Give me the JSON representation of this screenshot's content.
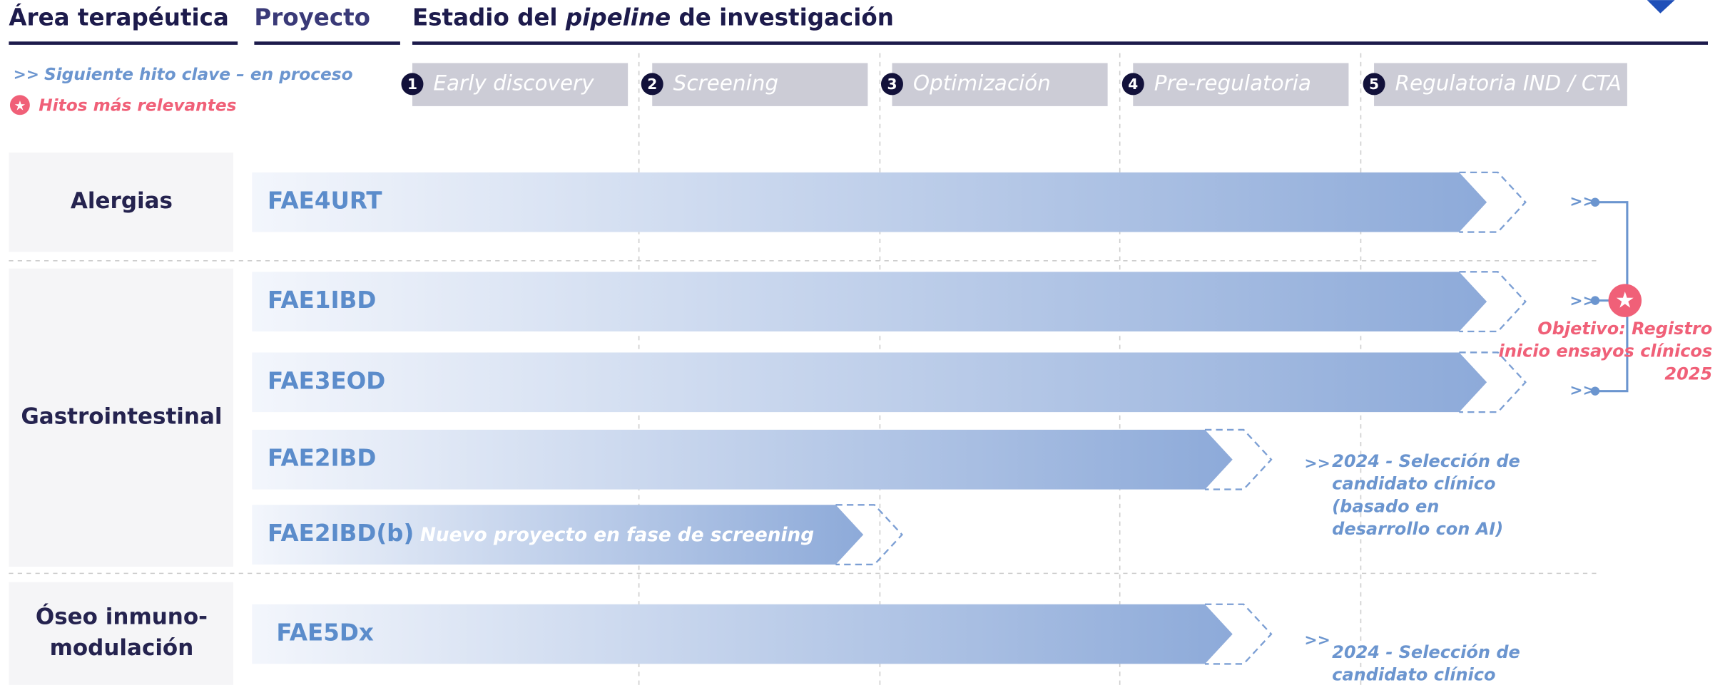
{
  "headers": {
    "area": "Área terapéutica",
    "project": "Proyecto",
    "stage_title": {
      "before": "Estadio del",
      "emphasis": "pipeline",
      "after": "de investigación"
    }
  },
  "legend": {
    "next_milestone": "Siguiente hito clave – en proceso",
    "key_milestones": "Hitos más relevantes"
  },
  "stages": [
    {
      "number": "1",
      "label": "Early discovery"
    },
    {
      "number": "2",
      "label": "Screening"
    },
    {
      "number": "3",
      "label": "Optimización"
    },
    {
      "number": "4",
      "label": "Pre-regulatoria"
    },
    {
      "number": "5",
      "label": "Regulatoria IND / CTA"
    }
  ],
  "areas": [
    {
      "lines": [
        "Alergias"
      ]
    },
    {
      "lines": [
        "Gastrointestinal"
      ]
    },
    {
      "lines": [
        "Óseo inmuno-",
        "modulación"
      ]
    }
  ],
  "projects": [
    {
      "name": "FAE4URT"
    },
    {
      "name": "FAE1IBD"
    },
    {
      "name": "FAE3EOD"
    },
    {
      "name": "FAE2IBD"
    },
    {
      "name": "FAE2IBD(b)",
      "note": "Nuevo proyecto en fase de screening"
    },
    {
      "name": "FAE5Dx"
    }
  ],
  "milestones": [
    {
      "lines": [
        "Objetivo: Registro",
        "inicio ensayos clínicos",
        "2025"
      ]
    },
    {
      "lines": [
        "2024 - Selección de",
        "candidato clínico",
        "(basado en",
        "desarrollo con AI)"
      ]
    },
    {
      "lines": [
        "2024 - Selección de",
        "candidato clínico"
      ]
    }
  ]
}
